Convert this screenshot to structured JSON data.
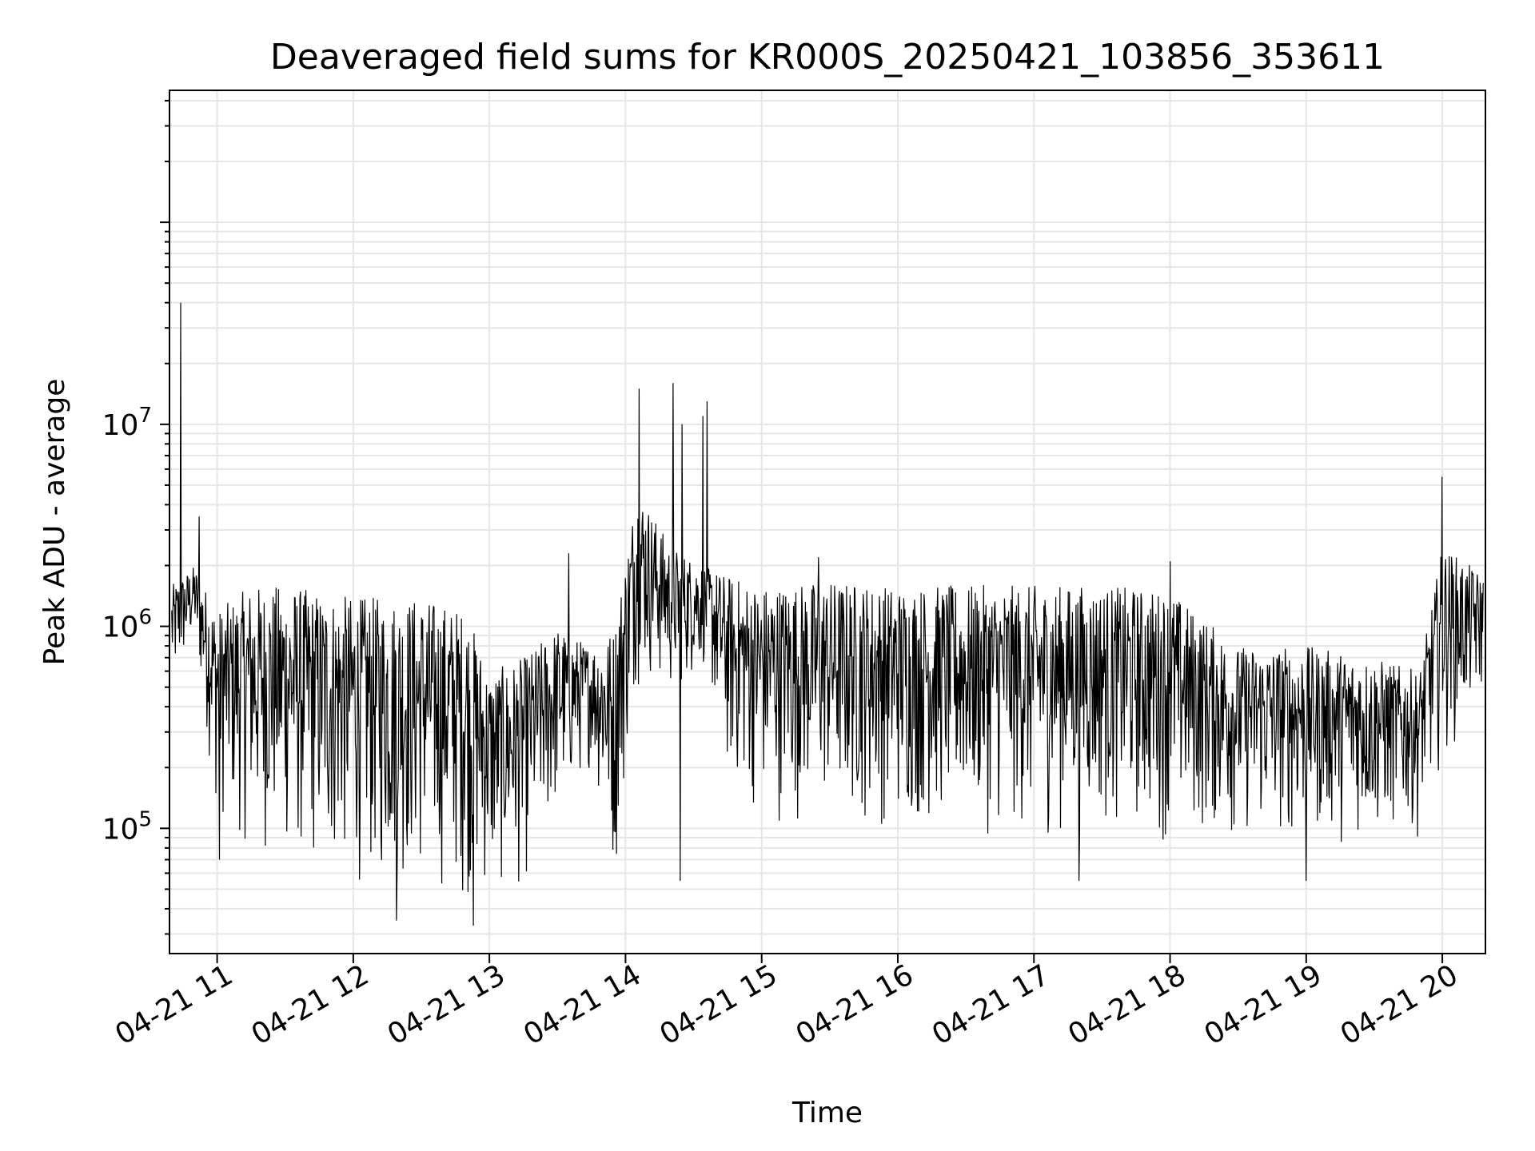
{
  "chart_data": {
    "type": "line",
    "title": "Deaveraged field sums for KR000S_20250421_103856_353611",
    "xlabel": "Time",
    "ylabel": "Peak ADU - average",
    "yscale": "log",
    "xlim": [
      "2025-04-21 10:39",
      "2025-04-21 20:19"
    ],
    "ylim": [
      24000,
      450000000
    ],
    "x_ticks": [
      "04-21 11",
      "04-21 12",
      "04-21 13",
      "04-21 14",
      "04-21 15",
      "04-21 16",
      "04-21 17",
      "04-21 18",
      "04-21 19",
      "04-21 20"
    ],
    "y_ticks": [
      {
        "base": "10",
        "exp": "5",
        "value": 100000
      },
      {
        "base": "10",
        "exp": "6",
        "value": 1000000
      },
      {
        "base": "10",
        "exp": "7",
        "value": 10000000
      }
    ],
    "grid": true,
    "line_color": "#000000",
    "series": [
      {
        "x": [
          "2025-04-21 10:40",
          "2025-04-21 10:42",
          "2025-04-21 10:43",
          "2025-04-21 10:45",
          "2025-04-21 10:50",
          "2025-04-21 10:55",
          "2025-04-21 11:00",
          "2025-04-21 11:10",
          "2025-04-21 11:20",
          "2025-04-21 11:30",
          "2025-04-21 11:40",
          "2025-04-21 11:50",
          "2025-04-21 12:00",
          "2025-04-21 12:15",
          "2025-04-21 12:30",
          "2025-04-21 12:45",
          "2025-04-21 13:00",
          "2025-04-21 13:15",
          "2025-04-21 13:30",
          "2025-04-21 13:45",
          "2025-04-21 13:55",
          "2025-04-21 14:00",
          "2025-04-21 14:05",
          "2025-04-21 14:10",
          "2025-04-21 14:20",
          "2025-04-21 14:30",
          "2025-04-21 14:35",
          "2025-04-21 14:40",
          "2025-04-21 14:45",
          "2025-04-21 15:00",
          "2025-04-21 15:15",
          "2025-04-21 15:30",
          "2025-04-21 16:00",
          "2025-04-21 16:30",
          "2025-04-21 17:00",
          "2025-04-21 17:30",
          "2025-04-21 18:00",
          "2025-04-21 18:30",
          "2025-04-21 19:00",
          "2025-04-21 19:30",
          "2025-04-21 19:50",
          "2025-04-21 20:00",
          "2025-04-21 20:10",
          "2025-04-21 20:18"
        ],
        "y": [
          600000,
          40000000,
          500000,
          1500000,
          1200000,
          600000,
          400000,
          1100000,
          600000,
          400000,
          700000,
          300000,
          350000,
          300000,
          400000,
          200000,
          300000,
          250000,
          350000,
          450000,
          300000,
          500000,
          3000000,
          1500000,
          1400000,
          1000000,
          1500000,
          1300000,
          1000000,
          900000,
          1000000,
          1000000,
          900000,
          800000,
          800000,
          800000,
          500000,
          350000,
          300000,
          350000,
          350000,
          800000,
          1500000,
          1200000
        ]
      }
    ],
    "lower_envelope": [
      [
        "2025-04-21 10:40",
        400000
      ],
      [
        "2025-04-21 10:50",
        800000
      ],
      [
        "2025-04-21 11:00",
        100000
      ],
      [
        "2025-04-21 11:15",
        70000
      ],
      [
        "2025-04-21 11:30",
        60000
      ],
      [
        "2025-04-21 11:45",
        50000
      ],
      [
        "2025-04-21 12:00",
        48000
      ],
      [
        "2025-04-21 12:15",
        43000
      ],
      [
        "2025-04-21 12:30",
        45000
      ],
      [
        "2025-04-21 12:50",
        40000
      ],
      [
        "2025-04-21 13:00",
        40000
      ],
      [
        "2025-04-21 13:15",
        45000
      ],
      [
        "2025-04-21 13:30",
        100000
      ],
      [
        "2025-04-21 13:45",
        200000
      ],
      [
        "2025-04-21 13:55",
        45000
      ],
      [
        "2025-04-21 14:05",
        500000
      ],
      [
        "2025-04-21 14:20",
        400000
      ],
      [
        "2025-04-21 14:35",
        600000
      ],
      [
        "2025-04-21 14:45",
        150000
      ],
      [
        "2025-04-21 15:00",
        100000
      ],
      [
        "2025-04-21 15:30",
        100000
      ],
      [
        "2025-04-21 16:00",
        90000
      ],
      [
        "2025-04-21 16:30",
        90000
      ],
      [
        "2025-04-21 17:00",
        80000
      ],
      [
        "2025-04-21 17:30",
        90000
      ],
      [
        "2025-04-21 18:00",
        80000
      ],
      [
        "2025-04-21 18:30",
        80000
      ],
      [
        "2025-04-21 19:00",
        80000
      ],
      [
        "2025-04-21 19:30",
        80000
      ],
      [
        "2025-04-21 19:50",
        90000
      ],
      [
        "2025-04-21 20:00",
        200000
      ],
      [
        "2025-04-21 20:18",
        400000
      ]
    ],
    "upper_envelope": [
      [
        "2025-04-21 10:40",
        1600000
      ],
      [
        "2025-04-21 10:50",
        2000000
      ],
      [
        "2025-04-21 11:00",
        1200000
      ],
      [
        "2025-04-21 11:15",
        1600000
      ],
      [
        "2025-04-21 11:30",
        1600000
      ],
      [
        "2025-04-21 11:45",
        1500000
      ],
      [
        "2025-04-21 12:00",
        1400000
      ],
      [
        "2025-04-21 12:15",
        1400000
      ],
      [
        "2025-04-21 12:30",
        1400000
      ],
      [
        "2025-04-21 12:50",
        1200000
      ],
      [
        "2025-04-21 13:00",
        600000
      ],
      [
        "2025-04-21 13:15",
        700000
      ],
      [
        "2025-04-21 13:30",
        1000000
      ],
      [
        "2025-04-21 13:45",
        800000
      ],
      [
        "2025-04-21 13:55",
        1000000
      ],
      [
        "2025-04-21 14:05",
        5000000
      ],
      [
        "2025-04-21 14:20",
        2500000
      ],
      [
        "2025-04-21 14:35",
        2000000
      ],
      [
        "2025-04-21 14:45",
        1800000
      ],
      [
        "2025-04-21 15:00",
        1600000
      ],
      [
        "2025-04-21 15:30",
        1700000
      ],
      [
        "2025-04-21 16:00",
        1600000
      ],
      [
        "2025-04-21 16:30",
        1600000
      ],
      [
        "2025-04-21 17:00",
        1600000
      ],
      [
        "2025-04-21 17:30",
        1600000
      ],
      [
        "2025-04-21 18:00",
        1500000
      ],
      [
        "2025-04-21 18:30",
        800000
      ],
      [
        "2025-04-21 19:00",
        800000
      ],
      [
        "2025-04-21 19:30",
        700000
      ],
      [
        "2025-04-21 19:50",
        600000
      ],
      [
        "2025-04-21 20:00",
        2500000
      ],
      [
        "2025-04-21 20:18",
        1800000
      ]
    ],
    "spikes": [
      [
        "2025-04-21 10:44",
        40000000
      ],
      [
        "2025-04-21 10:52",
        3500000
      ],
      [
        "2025-04-21 11:01",
        70000
      ],
      [
        "2025-04-21 12:19",
        35000
      ],
      [
        "2025-04-21 12:53",
        33000
      ],
      [
        "2025-04-21 13:35",
        2300000
      ],
      [
        "2025-04-21 14:06",
        15000000
      ],
      [
        "2025-04-21 14:21",
        16000000
      ],
      [
        "2025-04-21 14:24",
        55000
      ],
      [
        "2025-04-21 14:25",
        10000000
      ],
      [
        "2025-04-21 14:34",
        11000000
      ],
      [
        "2025-04-21 14:36",
        13000000
      ],
      [
        "2025-04-21 15:25",
        2200000
      ],
      [
        "2025-04-21 17:20",
        55000
      ],
      [
        "2025-04-21 18:00",
        2100000
      ],
      [
        "2025-04-21 19:00",
        55000
      ],
      [
        "2025-04-21 20:00",
        5500000
      ]
    ]
  }
}
